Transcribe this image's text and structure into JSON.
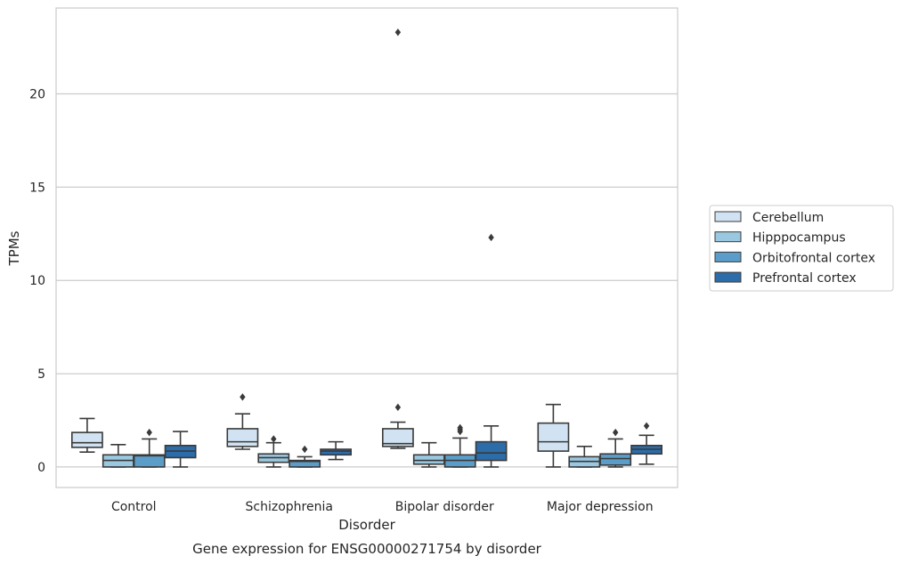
{
  "chart_data": {
    "type": "boxplot",
    "title": "",
    "caption": "Gene expression for ENSG00000271754 by disorder",
    "xlabel": "Disorder",
    "ylabel": "TPMs",
    "ylim": [
      -1.1,
      24.6
    ],
    "yticks": [
      0,
      5,
      10,
      15,
      20
    ],
    "grid": "horizontal",
    "legend_placement": "right-center",
    "categories": [
      "Control",
      "Schizophrenia",
      "Bipolar disorder",
      "Major depression"
    ],
    "series": [
      {
        "name": "Cerebellum",
        "color": "#d1e2f2",
        "boxes": [
          {
            "whislo": 0.8,
            "q1": 1.05,
            "med": 1.3,
            "q3": 1.85,
            "whishi": 2.6,
            "fliers": []
          },
          {
            "whislo": 0.95,
            "q1": 1.1,
            "med": 1.35,
            "q3": 2.05,
            "whishi": 2.85,
            "fliers": [
              3.75
            ]
          },
          {
            "whislo": 1.0,
            "q1": 1.1,
            "med": 1.25,
            "q3": 2.05,
            "whishi": 2.4,
            "fliers": [
              3.2,
              23.3
            ]
          },
          {
            "whislo": 0.0,
            "q1": 0.85,
            "med": 1.35,
            "q3": 2.35,
            "whishi": 3.35,
            "fliers": []
          }
        ]
      },
      {
        "name": "Hipppocampus",
        "color": "#9ac8e0",
        "boxes": [
          {
            "whislo": 0.0,
            "q1": 0.0,
            "med": 0.35,
            "q3": 0.65,
            "whishi": 1.2,
            "fliers": []
          },
          {
            "whislo": 0.0,
            "q1": 0.25,
            "med": 0.5,
            "q3": 0.7,
            "whishi": 1.3,
            "fliers": [
              1.5
            ]
          },
          {
            "whislo": 0.0,
            "q1": 0.15,
            "med": 0.35,
            "q3": 0.65,
            "whishi": 1.3,
            "fliers": []
          },
          {
            "whislo": 0.0,
            "q1": 0.0,
            "med": 0.3,
            "q3": 0.55,
            "whishi": 1.1,
            "fliers": []
          }
        ]
      },
      {
        "name": "Orbitofrontal cortex",
        "color": "#5b9dc9",
        "boxes": [
          {
            "whislo": 0.0,
            "q1": 0.0,
            "med": 0.6,
            "q3": 0.65,
            "whishi": 1.5,
            "fliers": [
              1.85
            ]
          },
          {
            "whislo": 0.0,
            "q1": 0.0,
            "med": 0.3,
            "q3": 0.35,
            "whishi": 0.55,
            "fliers": [
              0.95
            ]
          },
          {
            "whislo": 0.0,
            "q1": 0.0,
            "med": 0.35,
            "q3": 0.65,
            "whishi": 1.55,
            "fliers": [
              1.9,
              2.0,
              2.1
            ]
          },
          {
            "whislo": 0.0,
            "q1": 0.1,
            "med": 0.45,
            "q3": 0.7,
            "whishi": 1.5,
            "fliers": [
              1.85
            ]
          }
        ]
      },
      {
        "name": "Prefrontal cortex",
        "color": "#2b6ca9",
        "boxes": [
          {
            "whislo": 0.0,
            "q1": 0.5,
            "med": 0.85,
            "q3": 1.15,
            "whishi": 1.9,
            "fliers": []
          },
          {
            "whislo": 0.4,
            "q1": 0.65,
            "med": 0.85,
            "q3": 0.95,
            "whishi": 1.35,
            "fliers": []
          },
          {
            "whislo": 0.0,
            "q1": 0.35,
            "med": 0.75,
            "q3": 1.35,
            "whishi": 2.2,
            "fliers": [
              12.3
            ]
          },
          {
            "whislo": 0.15,
            "q1": 0.7,
            "med": 0.95,
            "q3": 1.15,
            "whishi": 1.7,
            "fliers": [
              2.2
            ]
          }
        ]
      }
    ]
  }
}
